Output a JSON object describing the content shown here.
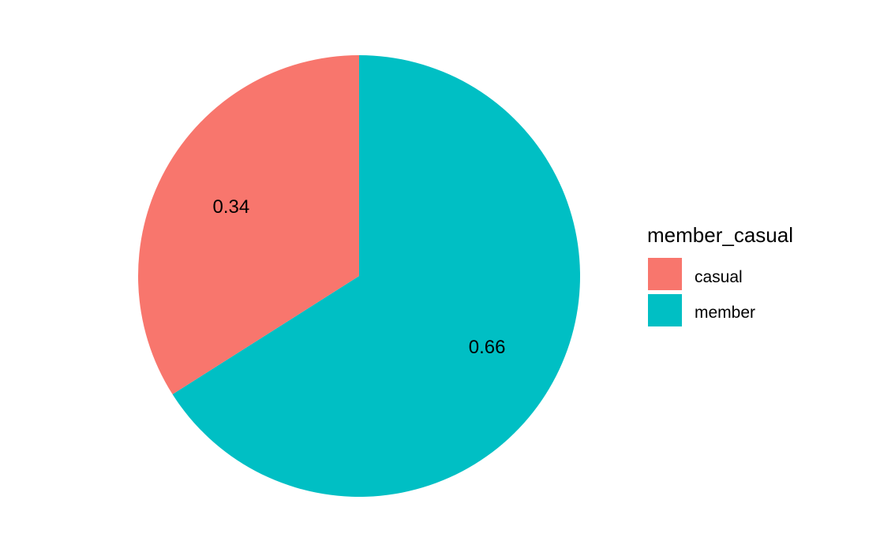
{
  "chart_data": {
    "type": "pie",
    "legend_title": "member_casual",
    "legend_position": "right",
    "slices": [
      {
        "name": "casual",
        "value": 0.34,
        "label": "0.34",
        "color": "#F8766D"
      },
      {
        "name": "member",
        "value": 0.66,
        "label": "0.66",
        "color": "#00BFC4"
      }
    ]
  }
}
